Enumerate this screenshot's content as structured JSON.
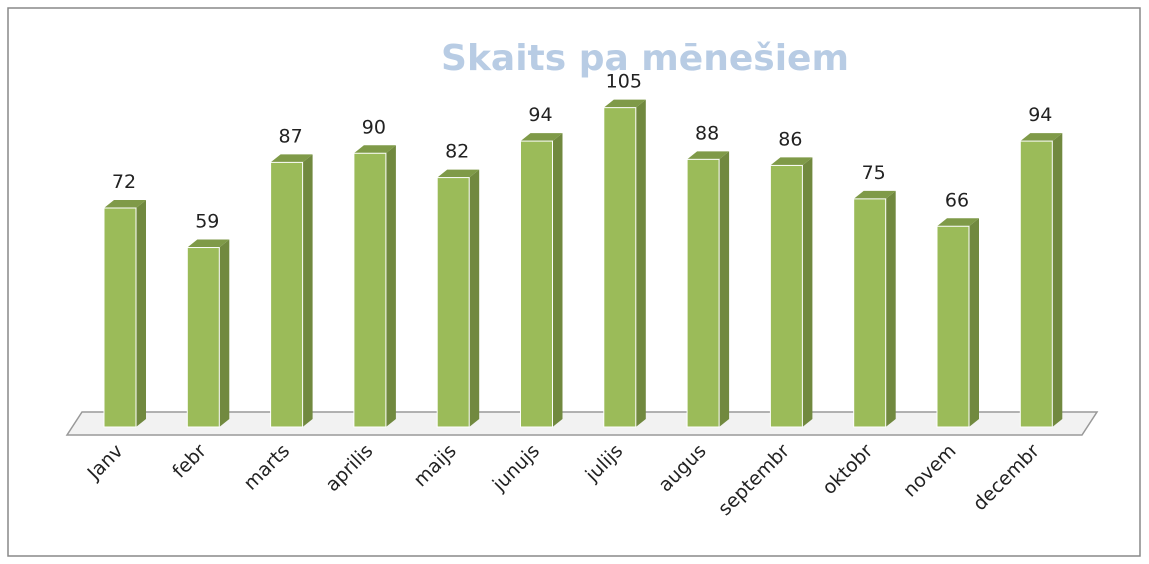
{
  "chart_data": {
    "type": "bar",
    "title": "Skaits pa mēnešiem",
    "categories": [
      "Janv",
      "febr",
      "marts",
      "aprilis",
      "maijs",
      "junujs",
      "julijs",
      "augus",
      "septembr",
      "oktobr",
      "novem",
      "decembr"
    ],
    "values": [
      72,
      59,
      87,
      90,
      82,
      94,
      105,
      88,
      86,
      75,
      66,
      94
    ],
    "color": "#9bbb59",
    "ylim": [
      0,
      120
    ]
  }
}
